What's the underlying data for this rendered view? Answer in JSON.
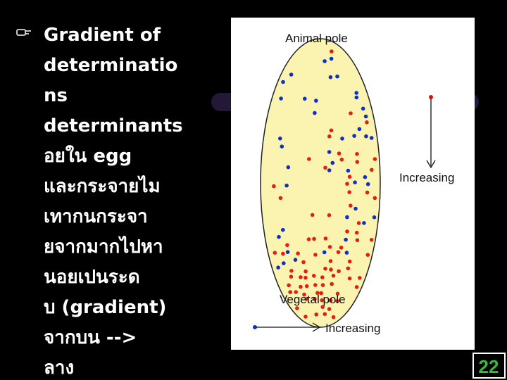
{
  "slide": {
    "body_lines": [
      "Gradient of",
      "determinatio",
      "ns",
      "determinants",
      "อยใน    egg",
      "และกระจายไม",
      "เทากนกระจา",
      "ยจากมากไปหา",
      "นอยเปนระด",
      "บ    (gradient)",
      "จากบน -->",
      "ลาง"
    ],
    "figure": {
      "top_label": "Animal pole",
      "right_arrow_label": "Increasing",
      "bottom_label": "Vegetal pole",
      "bottom_arrow_label": "Increasing"
    },
    "page_number": "22"
  }
}
